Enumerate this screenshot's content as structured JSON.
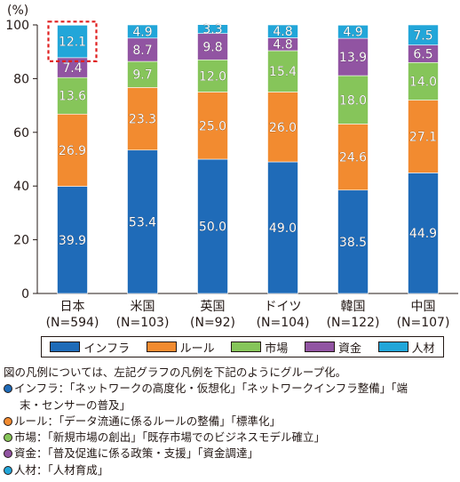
{
  "chart_data": {
    "type": "bar",
    "stacked": true,
    "y_unit": "(%)",
    "ylim": [
      0,
      100
    ],
    "yticks": [
      "0",
      "20",
      "40",
      "60",
      "80",
      "100"
    ],
    "categories": [
      "日本",
      "米国",
      "英国",
      "ドイツ",
      "韓国",
      "中国"
    ],
    "category_sublabels": [
      "(N=594)",
      "(N=103)",
      "(N=92)",
      "(N=104)",
      "(N=122)",
      "(N=107)"
    ],
    "series": [
      {
        "name": "インフラ",
        "color": "#1f6bb8",
        "values": [
          39.9,
          53.4,
          50.0,
          49.0,
          38.5,
          44.9
        ],
        "labels": [
          "39.9",
          "53.4",
          "50.0",
          "49.0",
          "38.5",
          "44.9"
        ]
      },
      {
        "name": "ルール",
        "color": "#f28b30",
        "values": [
          26.9,
          23.3,
          25.0,
          26.0,
          24.6,
          27.1
        ],
        "labels": [
          "26.9",
          "23.3",
          "25.0",
          "26.0",
          "24.6",
          "27.1"
        ]
      },
      {
        "name": "市場",
        "color": "#86c55a",
        "values": [
          13.6,
          9.7,
          12.0,
          15.4,
          18.0,
          14.0
        ],
        "labels": [
          "13.6",
          "9.7",
          "12.0",
          "15.4",
          "18.0",
          "14.0"
        ]
      },
      {
        "name": "資金",
        "color": "#9154a2",
        "values": [
          7.4,
          8.7,
          9.8,
          4.8,
          13.9,
          6.5
        ],
        "labels": [
          "7.4",
          "8.7",
          "9.8",
          "4.8",
          "13.9",
          "6.5"
        ]
      },
      {
        "name": "人材",
        "color": "#22a6d9",
        "values": [
          12.1,
          4.9,
          3.3,
          4.8,
          4.9,
          7.5
        ],
        "labels": [
          "12.1",
          "4.9",
          "3.3",
          "4.8",
          "4.9",
          "7.5"
        ]
      }
    ],
    "highlight": {
      "category": "日本",
      "series": "人材",
      "style": "red dashed box",
      "color": "#e02020"
    },
    "legend_position": "bottom"
  },
  "notes": {
    "intro": "図の凡例については、左記グラフの凡例を下記のようにグループ化。",
    "items": [
      {
        "color": "#1f6bb8",
        "line1": "インフラ：「ネットワークの高度化・仮想化」「ネットワークインフラ整備」「端",
        "line2": "末・センサーの普及」"
      },
      {
        "color": "#f28b30",
        "line1": "ルール：「データ流通に係るルールの整備」「標準化」",
        "line2": ""
      },
      {
        "color": "#86c55a",
        "line1": "市場：「新規市場の創出」「既存市場でのビジネスモデル確立」",
        "line2": ""
      },
      {
        "color": "#9154a2",
        "line1": "資金：「普及促進に係る政策・支援」「資金調達」",
        "line2": ""
      },
      {
        "color": "#22a6d9",
        "line1": "人材：「人材育成」",
        "line2": ""
      }
    ]
  }
}
